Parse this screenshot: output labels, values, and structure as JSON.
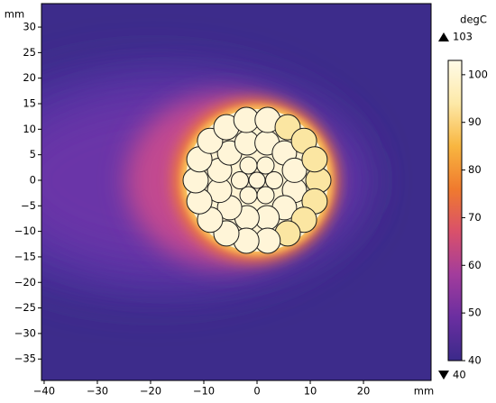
{
  "chart_data": {
    "type": "heatmap",
    "x_label": "mm",
    "y_label": "mm",
    "xlim": [
      -40.5,
      32.7
    ],
    "ylim": [
      -39.2,
      34.6
    ],
    "xticks": [
      {
        "value": -40,
        "label": "−40"
      },
      {
        "value": -30,
        "label": "−30"
      },
      {
        "value": -20,
        "label": "−20"
      },
      {
        "value": -10,
        "label": "−10"
      },
      0,
      10,
      20
    ],
    "yticks": [
      30,
      25,
      20,
      15,
      10,
      5,
      0,
      {
        "value": -5,
        "label": "−5"
      },
      {
        "value": -10,
        "label": "−10"
      },
      {
        "value": -15,
        "label": "−15"
      },
      {
        "value": -20,
        "label": "−20"
      },
      {
        "value": -25,
        "label": "−25"
      },
      {
        "value": -30,
        "label": "−30"
      },
      {
        "value": -35,
        "label": "−35"
      }
    ],
    "colorbar": {
      "title": "degC",
      "max": 103,
      "min": 40,
      "ticks": [
        40,
        50,
        60,
        70,
        80,
        90,
        100
      ],
      "colors": [
        "#3b2a8a",
        "#6a2ea0",
        "#a23c9c",
        "#d9506b",
        "#f07a2e",
        "#f8b640",
        "#fde9a8",
        "#fffbe8"
      ]
    }
  }
}
